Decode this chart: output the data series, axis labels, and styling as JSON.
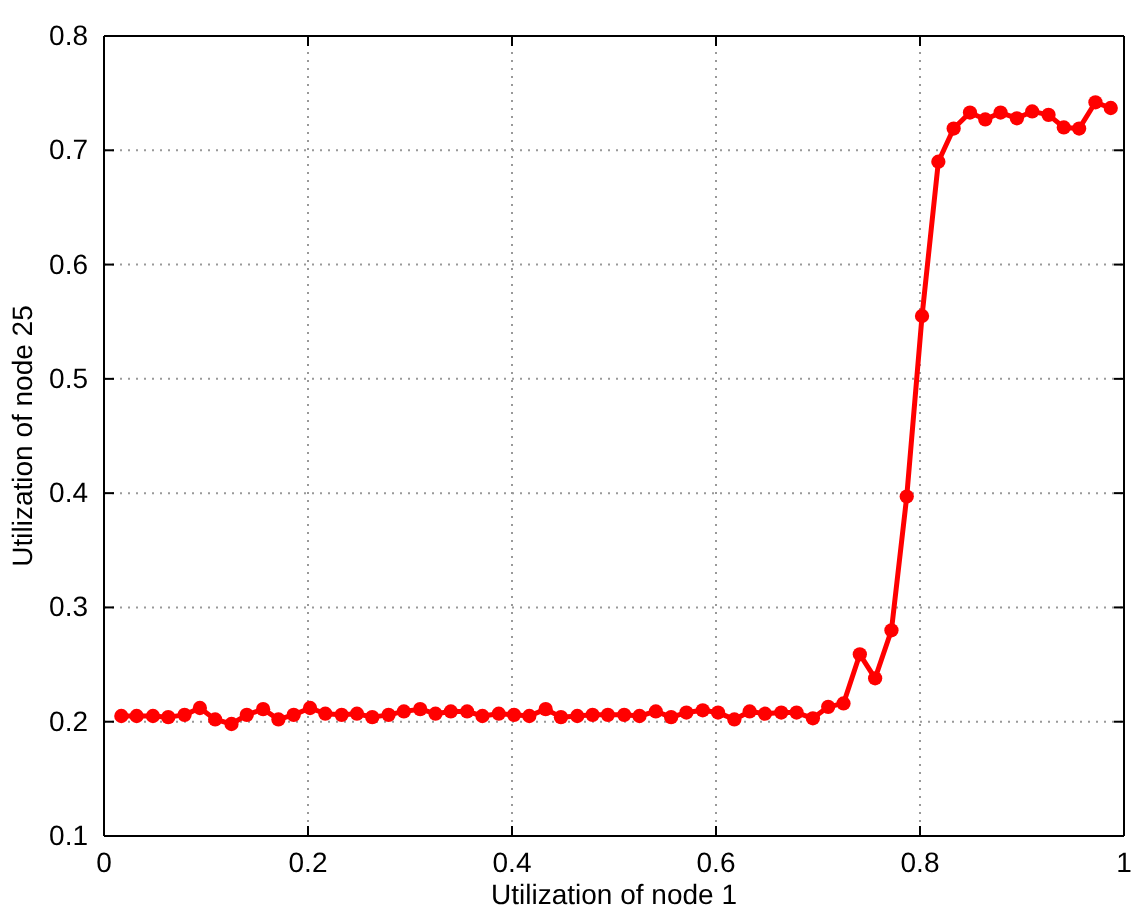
{
  "chart_data": {
    "type": "line",
    "xlabel": "Utilization of node 1",
    "ylabel": "Utilization of node 25",
    "x": [
      0.017,
      0.032,
      0.048,
      0.063,
      0.079,
      0.094,
      0.109,
      0.125,
      0.14,
      0.156,
      0.171,
      0.186,
      0.202,
      0.217,
      0.233,
      0.248,
      0.263,
      0.279,
      0.294,
      0.31,
      0.325,
      0.34,
      0.356,
      0.371,
      0.387,
      0.402,
      0.417,
      0.433,
      0.448,
      0.464,
      0.479,
      0.494,
      0.51,
      0.525,
      0.541,
      0.556,
      0.571,
      0.587,
      0.602,
      0.618,
      0.633,
      0.648,
      0.664,
      0.679,
      0.695,
      0.71,
      0.725,
      0.741,
      0.756,
      0.772,
      0.787,
      0.802,
      0.818,
      0.833,
      0.849,
      0.864,
      0.879,
      0.895,
      0.91,
      0.926,
      0.941,
      0.956,
      0.972,
      0.987
    ],
    "series": [
      {
        "color": "#ff0000",
        "values": [
          0.205,
          0.205,
          0.205,
          0.204,
          0.206,
          0.212,
          0.202,
          0.198,
          0.206,
          0.211,
          0.202,
          0.206,
          0.212,
          0.207,
          0.206,
          0.207,
          0.204,
          0.206,
          0.209,
          0.211,
          0.207,
          0.209,
          0.209,
          0.205,
          0.207,
          0.206,
          0.205,
          0.211,
          0.204,
          0.205,
          0.206,
          0.206,
          0.206,
          0.205,
          0.209,
          0.204,
          0.208,
          0.21,
          0.208,
          0.202,
          0.209,
          0.207,
          0.208,
          0.208,
          0.203,
          0.213,
          0.216,
          0.259,
          0.238,
          0.28,
          0.397,
          0.555,
          0.69,
          0.719,
          0.733,
          0.727,
          0.733,
          0.728,
          0.734,
          0.731,
          0.72,
          0.719,
          0.742,
          0.737
        ]
      }
    ],
    "xlim": [
      0,
      1
    ],
    "xticks": [
      0,
      0.2,
      0.4,
      0.6,
      0.8,
      1
    ],
    "ylim": [
      0.1,
      0.8
    ],
    "yticks": [
      0.1,
      0.2,
      0.3,
      0.4,
      0.5,
      0.6,
      0.7,
      0.8
    ],
    "grid": true,
    "marker": "circle",
    "line_style": "solid"
  }
}
